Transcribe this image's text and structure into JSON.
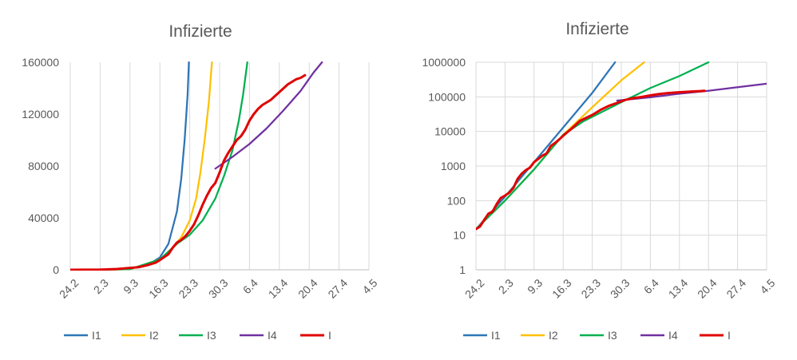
{
  "colors": {
    "I1": "#2E75B6",
    "I2": "#FFC000",
    "I3": "#00B050",
    "I4": "#7030A0",
    "I": "#E00000",
    "grid": "#D9D9D9",
    "axis": "#BFBFBF"
  },
  "chart_data": [
    {
      "type": "line",
      "title": "Infizierte",
      "xlabel": "",
      "ylabel": "",
      "x_axis": "days since 24.2",
      "x_ticks": [
        {
          "label": "24.2",
          "day": 0
        },
        {
          "label": "2.3",
          "day": 7
        },
        {
          "label": "9.3",
          "day": 14
        },
        {
          "label": "16.3",
          "day": 21
        },
        {
          "label": "23.3",
          "day": 28
        },
        {
          "label": "30.3",
          "day": 35
        },
        {
          "label": "6.4",
          "day": 42
        },
        {
          "label": "13.4",
          "day": 49
        },
        {
          "label": "20.4",
          "day": 56
        },
        {
          "label": "27.4",
          "day": 63
        },
        {
          "label": "4.5",
          "day": 70
        }
      ],
      "xlim": [
        0,
        70
      ],
      "y_scale": "linear",
      "ylim": [
        0,
        160000
      ],
      "y_ticks": [
        {
          "label": "0",
          "value": 0
        },
        {
          "label": "40000",
          "value": 40000
        },
        {
          "label": "80000",
          "value": 80000
        },
        {
          "label": "120000",
          "value": 120000
        },
        {
          "label": "160000",
          "value": 160000
        }
      ],
      "grid": "vertical",
      "legend": "bottom",
      "series": [
        {
          "name": "I1",
          "color_key": "I1",
          "points": [
            [
              0,
              15
            ],
            [
              7,
              120
            ],
            [
              14,
              900
            ],
            [
              18,
              3500
            ],
            [
              21,
              9500
            ],
            [
              23,
              20000
            ],
            [
              25,
              45000
            ],
            [
              26,
              70000
            ],
            [
              26.8,
              100000
            ],
            [
              27.5,
              135000
            ],
            [
              27.8,
              160000
            ]
          ]
        },
        {
          "name": "I2",
          "color_key": "I2",
          "points": [
            [
              0,
              15
            ],
            [
              7,
              90
            ],
            [
              14,
              500
            ],
            [
              21,
              8000
            ],
            [
              24,
              17000
            ],
            [
              26,
              25000
            ],
            [
              28,
              38000
            ],
            [
              29.5,
              55000
            ],
            [
              30.5,
              75000
            ],
            [
              31.5,
              100000
            ],
            [
              32.5,
              130000
            ],
            [
              33.2,
              160000
            ]
          ]
        },
        {
          "name": "I3",
          "color_key": "I3",
          "points": [
            [
              0,
              15
            ],
            [
              7,
              90
            ],
            [
              14,
              500
            ],
            [
              21,
              8000
            ],
            [
              25,
              20000
            ],
            [
              28,
              27000
            ],
            [
              31,
              38000
            ],
            [
              34,
              55000
            ],
            [
              36,
              72000
            ],
            [
              38,
              92000
            ],
            [
              39.5,
              115000
            ],
            [
              40.5,
              135000
            ],
            [
              41.5,
              160000
            ]
          ]
        },
        {
          "name": "I4",
          "color_key": "I4",
          "points": [
            [
              34,
              78000
            ],
            [
              38,
              87000
            ],
            [
              42,
              97000
            ],
            [
              46,
              109000
            ],
            [
              50,
              123000
            ],
            [
              54,
              138000
            ],
            [
              57,
              152000
            ],
            [
              59,
              160000
            ]
          ]
        },
        {
          "name": "I",
          "color_key": "I",
          "points": [
            [
              0,
              15
            ],
            [
              7,
              150
            ],
            [
              11,
              600
            ],
            [
              14,
              1500
            ],
            [
              16,
              2000
            ],
            [
              18,
              3500
            ],
            [
              20,
              5500
            ],
            [
              21,
              7500
            ],
            [
              23,
              12000
            ],
            [
              24,
              17000
            ],
            [
              25,
              21000
            ],
            [
              26,
              23000
            ],
            [
              27,
              26000
            ],
            [
              28,
              30000
            ],
            [
              29,
              35000
            ],
            [
              30,
              42000
            ],
            [
              31,
              50000
            ],
            [
              32,
              57000
            ],
            [
              33,
              63000
            ],
            [
              34,
              67000
            ],
            [
              35,
              75000
            ],
            [
              36,
              84000
            ],
            [
              37,
              90000
            ],
            [
              38,
              95000
            ],
            [
              39,
              100000
            ],
            [
              40,
              103000
            ],
            [
              41,
              108000
            ],
            [
              42,
              115000
            ],
            [
              43,
              120000
            ],
            [
              44,
              124000
            ],
            [
              45,
              127000
            ],
            [
              46,
              129000
            ],
            [
              47,
              131000
            ],
            [
              48,
              134000
            ],
            [
              49,
              137000
            ],
            [
              50,
              140000
            ],
            [
              51,
              143000
            ],
            [
              52,
              145000
            ],
            [
              53,
              147000
            ],
            [
              54,
              148000
            ],
            [
              55,
              150000
            ]
          ]
        }
      ]
    },
    {
      "type": "line",
      "title": "Infizierte",
      "xlabel": "",
      "ylabel": "",
      "x_axis": "days since 24.2",
      "x_ticks": [
        {
          "label": "24.2",
          "day": 0
        },
        {
          "label": "2.3",
          "day": 7
        },
        {
          "label": "9.3",
          "day": 14
        },
        {
          "label": "16.3",
          "day": 21
        },
        {
          "label": "23.3",
          "day": 28
        },
        {
          "label": "30.3",
          "day": 35
        },
        {
          "label": "6.4",
          "day": 42
        },
        {
          "label": "13.4",
          "day": 49
        },
        {
          "label": "20.4",
          "day": 56
        },
        {
          "label": "27.4",
          "day": 63
        },
        {
          "label": "4.5",
          "day": 70
        }
      ],
      "xlim": [
        0,
        70
      ],
      "y_scale": "log",
      "ylim": [
        1,
        1000000
      ],
      "y_ticks": [
        {
          "label": "1",
          "value": 1
        },
        {
          "label": "10",
          "value": 10
        },
        {
          "label": "100",
          "value": 100
        },
        {
          "label": "1000",
          "value": 1000
        },
        {
          "label": "10000",
          "value": 10000
        },
        {
          "label": "100000",
          "value": 100000
        },
        {
          "label": "1000000",
          "value": 1000000
        }
      ],
      "grid": "both",
      "legend": "bottom",
      "series": [
        {
          "name": "I1",
          "color_key": "I1",
          "points": [
            [
              0,
              15
            ],
            [
              7,
              130
            ],
            [
              14,
              1300
            ],
            [
              21,
              13000
            ],
            [
              28,
              130000
            ],
            [
              33.5,
              1000000
            ]
          ]
        },
        {
          "name": "I2",
          "color_key": "I2",
          "points": [
            [
              0,
              15
            ],
            [
              7,
              100
            ],
            [
              14,
              800
            ],
            [
              21,
              8000
            ],
            [
              28,
              50000
            ],
            [
              35,
              300000
            ],
            [
              40.5,
              1000000
            ]
          ]
        },
        {
          "name": "I3",
          "color_key": "I3",
          "points": [
            [
              0,
              15
            ],
            [
              7,
              100
            ],
            [
              14,
              800
            ],
            [
              21,
              8000
            ],
            [
              26,
              20000
            ],
            [
              30,
              35000
            ],
            [
              35,
              70000
            ],
            [
              42,
              180000
            ],
            [
              49,
              400000
            ],
            [
              56,
              1000000
            ]
          ]
        },
        {
          "name": "I4",
          "color_key": "I4",
          "points": [
            [
              34,
              78000
            ],
            [
              42,
              97000
            ],
            [
              49,
              123000
            ],
            [
              56,
              150000
            ],
            [
              63,
              190000
            ],
            [
              70,
              240000
            ]
          ]
        },
        {
          "name": "I",
          "color_key": "I",
          "points": [
            [
              0,
              15
            ],
            [
              1,
              18
            ],
            [
              2,
              28
            ],
            [
              3,
              42
            ],
            [
              4,
              48
            ],
            [
              5,
              80
            ],
            [
              6,
              120
            ],
            [
              7,
              140
            ],
            [
              8,
              170
            ],
            [
              9,
              230
            ],
            [
              10,
              420
            ],
            [
              11,
              600
            ],
            [
              12,
              760
            ],
            [
              13,
              900
            ],
            [
              14,
              1300
            ],
            [
              15,
              1600
            ],
            [
              16,
              2000
            ],
            [
              17,
              2300
            ],
            [
              18,
              3800
            ],
            [
              19,
              4600
            ],
            [
              20,
              5800
            ],
            [
              21,
              7500
            ],
            [
              22,
              9500
            ],
            [
              23,
              12000
            ],
            [
              24,
              15500
            ],
            [
              25,
              20000
            ],
            [
              26,
              23000
            ],
            [
              28,
              30000
            ],
            [
              30,
              42000
            ],
            [
              32,
              55000
            ],
            [
              34,
              67000
            ],
            [
              36,
              82000
            ],
            [
              38,
              92000
            ],
            [
              40,
              100000
            ],
            [
              42,
              110000
            ],
            [
              44,
              120000
            ],
            [
              46,
              128000
            ],
            [
              48,
              134000
            ],
            [
              50,
              138000
            ],
            [
              52,
              143000
            ],
            [
              54,
              147000
            ],
            [
              55,
              150000
            ]
          ]
        }
      ]
    }
  ]
}
